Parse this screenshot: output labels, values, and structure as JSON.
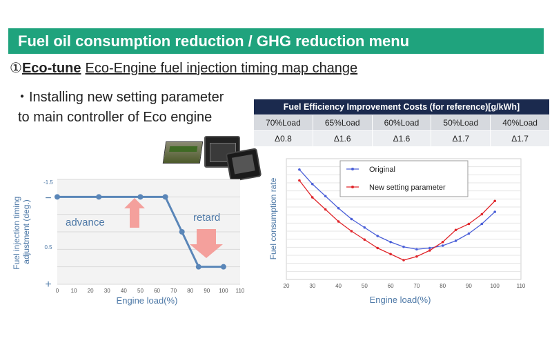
{
  "header": {
    "title": "Fuel oil consumption reduction / GHG reduction menu"
  },
  "subtitle": {
    "number": "①",
    "name": "Eco-tune",
    "description": "Eco-Engine fuel injection timing map change"
  },
  "bullet": {
    "line1": "・Installing new setting parameter",
    "line2": "to main controller of Eco engine"
  },
  "cost_table": {
    "title": "Fuel Efficiency Improvement Costs (for reference)[g/kWh]",
    "loads": [
      "70%Load",
      "65%Load",
      "60%Load",
      "50%Load",
      "40%Load"
    ],
    "values": [
      "Δ0.8",
      "Δ1.6",
      "Δ1.6",
      "Δ1.7",
      "Δ1.7"
    ]
  },
  "chart_data": [
    {
      "type": "line",
      "xlabel": "Engine load(%)",
      "ylabel": "Fuel injection timing adjustment (deg.)",
      "xticks": [
        "0",
        "10",
        "20",
        "30",
        "40",
        "50",
        "60",
        "70",
        "80",
        "90",
        "100",
        "110"
      ],
      "yticks": [
        "-1.5",
        "−",
        "0.5",
        "+"
      ],
      "xlim": [
        0,
        110
      ],
      "ylim": [
        -1.5,
        1.5
      ],
      "series": [
        {
          "x": [
            0,
            25,
            50,
            65,
            75,
            85,
            100
          ],
          "y": [
            -1.0,
            -1.0,
            -1.0,
            -1.0,
            0.0,
            1.0,
            1.0
          ]
        }
      ],
      "annotations": [
        "advance",
        "retard"
      ],
      "grid": true,
      "color": "#5a86b8"
    },
    {
      "type": "line",
      "xlabel": "Engine load(%)",
      "ylabel": "Fuel consumption rate",
      "xticks": [
        "20",
        "30",
        "40",
        "50",
        "60",
        "70",
        "80",
        "90",
        "100",
        "110"
      ],
      "xlim": [
        20,
        110
      ],
      "ylim": [
        0,
        10
      ],
      "grid": true,
      "legend": "top-center",
      "series": [
        {
          "name": "Original",
          "color": "#4a5fd8",
          "x": [
            25,
            30,
            35,
            40,
            45,
            50,
            55,
            60,
            65,
            70,
            75,
            80,
            85,
            90,
            95,
            100
          ],
          "y": [
            9.1,
            7.9,
            6.9,
            5.9,
            5.0,
            4.3,
            3.6,
            3.1,
            2.7,
            2.5,
            2.6,
            2.8,
            3.2,
            3.8,
            4.6,
            5.6
          ]
        },
        {
          "name": "New setting parameter",
          "color": "#e0262b",
          "x": [
            25,
            30,
            35,
            40,
            45,
            50,
            55,
            60,
            65,
            70,
            75,
            80,
            85,
            90,
            95,
            100
          ],
          "y": [
            8.2,
            6.8,
            5.8,
            4.8,
            4.0,
            3.3,
            2.6,
            2.1,
            1.6,
            1.9,
            2.4,
            3.1,
            4.1,
            4.6,
            5.4,
            6.5
          ]
        }
      ]
    }
  ]
}
